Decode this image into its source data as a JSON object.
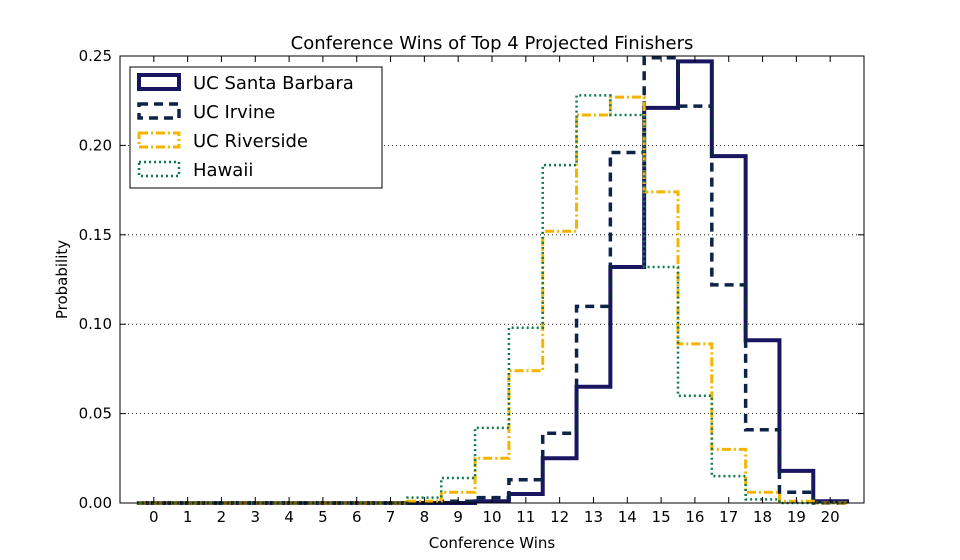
{
  "chart_data": {
    "type": "step-histogram",
    "title": "Conference Wins of Top 4 Projected Finishers",
    "xlabel": "Conference Wins",
    "ylabel": "Probability",
    "xlim": [
      -1,
      21
    ],
    "ylim": [
      0,
      0.25
    ],
    "categories": [
      "0",
      "1",
      "2",
      "3",
      "4",
      "5",
      "6",
      "7",
      "8",
      "9",
      "10",
      "11",
      "12",
      "13",
      "14",
      "15",
      "16",
      "17",
      "18",
      "19",
      "20"
    ],
    "yticks": [
      "0.00",
      "0.05",
      "0.10",
      "0.15",
      "0.20",
      "0.25"
    ],
    "grid": "y-dotted",
    "legend_position": "top-left",
    "series": [
      {
        "name": "UC Santa Barbara",
        "color": "#1a1560",
        "dash": "solid",
        "values": [
          0,
          0,
          0,
          0,
          0,
          0,
          0,
          0,
          0,
          0,
          0.001,
          0.005,
          0.025,
          0.065,
          0.132,
          0.221,
          0.247,
          0.194,
          0.091,
          0.018,
          0.001
        ]
      },
      {
        "name": "UC Irvine",
        "color": "#0d2347",
        "dash": "dashed",
        "values": [
          0,
          0,
          0,
          0,
          0,
          0,
          0,
          0,
          0,
          0.001,
          0.003,
          0.013,
          0.039,
          0.11,
          0.196,
          0.249,
          0.222,
          0.122,
          0.041,
          0.006,
          0
        ]
      },
      {
        "name": "UC Riverside",
        "color": "#f5b400",
        "dash": "dashdot",
        "values": [
          0,
          0,
          0,
          0,
          0,
          0,
          0,
          0,
          0.001,
          0.006,
          0.025,
          0.074,
          0.152,
          0.217,
          0.227,
          0.174,
          0.089,
          0.03,
          0.006,
          0.001,
          0
        ]
      },
      {
        "name": "Hawaii",
        "color": "#0f7a4a",
        "dash": "dotted",
        "values": [
          0,
          0,
          0,
          0,
          0,
          0,
          0,
          0,
          0.003,
          0.014,
          0.042,
          0.098,
          0.189,
          0.228,
          0.217,
          0.132,
          0.06,
          0.015,
          0.002,
          0,
          0
        ]
      }
    ]
  }
}
